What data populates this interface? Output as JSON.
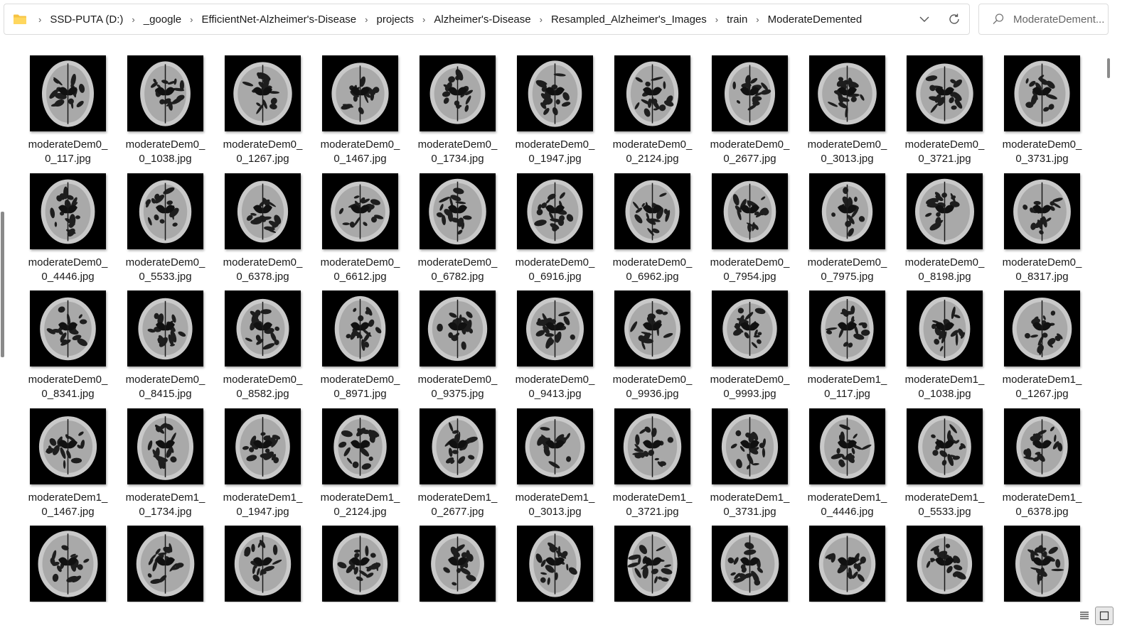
{
  "address": {
    "breadcrumbs": [
      "SSD-PUTA (D:)",
      "_google",
      "EfficientNet-Alzheimer's-Disease",
      "projects",
      "Alzheimer's-Disease",
      "Resampled_Alzheimer's_Images",
      "train",
      "ModerateDemented"
    ],
    "separator": "›"
  },
  "search": {
    "text": "ModerateDement..."
  },
  "files": [
    [
      "moderateDem0_",
      "0_117.jpg"
    ],
    [
      "moderateDem0_",
      "0_1038.jpg"
    ],
    [
      "moderateDem0_",
      "0_1267.jpg"
    ],
    [
      "moderateDem0_",
      "0_1467.jpg"
    ],
    [
      "moderateDem0_",
      "0_1734.jpg"
    ],
    [
      "moderateDem0_",
      "0_1947.jpg"
    ],
    [
      "moderateDem0_",
      "0_2124.jpg"
    ],
    [
      "moderateDem0_",
      "0_2677.jpg"
    ],
    [
      "moderateDem0_",
      "0_3013.jpg"
    ],
    [
      "moderateDem0_",
      "0_3721.jpg"
    ],
    [
      "moderateDem0_",
      "0_3731.jpg"
    ],
    [
      "moderateDem0_",
      "0_4446.jpg"
    ],
    [
      "moderateDem0_",
      "0_5533.jpg"
    ],
    [
      "moderateDem0_",
      "0_6378.jpg"
    ],
    [
      "moderateDem0_",
      "0_6612.jpg"
    ],
    [
      "moderateDem0_",
      "0_6782.jpg"
    ],
    [
      "moderateDem0_",
      "0_6916.jpg"
    ],
    [
      "moderateDem0_",
      "0_6962.jpg"
    ],
    [
      "moderateDem0_",
      "0_7954.jpg"
    ],
    [
      "moderateDem0_",
      "0_7975.jpg"
    ],
    [
      "moderateDem0_",
      "0_8198.jpg"
    ],
    [
      "moderateDem0_",
      "0_8317.jpg"
    ],
    [
      "moderateDem0_",
      "0_8341.jpg"
    ],
    [
      "moderateDem0_",
      "0_8415.jpg"
    ],
    [
      "moderateDem0_",
      "0_8582.jpg"
    ],
    [
      "moderateDem0_",
      "0_8971.jpg"
    ],
    [
      "moderateDem0_",
      "0_9375.jpg"
    ],
    [
      "moderateDem0_",
      "0_9413.jpg"
    ],
    [
      "moderateDem0_",
      "0_9936.jpg"
    ],
    [
      "moderateDem0_",
      "0_9993.jpg"
    ],
    [
      "moderateDem1_",
      "0_117.jpg"
    ],
    [
      "moderateDem1_",
      "0_1038.jpg"
    ],
    [
      "moderateDem1_",
      "0_1267.jpg"
    ],
    [
      "moderateDem1_",
      "0_1467.jpg"
    ],
    [
      "moderateDem1_",
      "0_1734.jpg"
    ],
    [
      "moderateDem1_",
      "0_1947.jpg"
    ],
    [
      "moderateDem1_",
      "0_2124.jpg"
    ],
    [
      "moderateDem1_",
      "0_2677.jpg"
    ],
    [
      "moderateDem1_",
      "0_3013.jpg"
    ],
    [
      "moderateDem1_",
      "0_3721.jpg"
    ],
    [
      "moderateDem1_",
      "0_3731.jpg"
    ],
    [
      "moderateDem1_",
      "0_4446.jpg"
    ],
    [
      "moderateDem1_",
      "0_5533.jpg"
    ],
    [
      "moderateDem1_",
      "0_6378.jpg"
    ],
    [
      "",
      ""
    ],
    [
      "",
      ""
    ],
    [
      "",
      ""
    ],
    [
      "",
      ""
    ],
    [
      "",
      ""
    ],
    [
      "",
      ""
    ],
    [
      "",
      ""
    ],
    [
      "",
      ""
    ],
    [
      "",
      ""
    ],
    [
      "",
      ""
    ],
    [
      "",
      ""
    ]
  ],
  "icons": {
    "folder": "folder-icon",
    "chevron": "chevron-down-icon",
    "refresh": "refresh-icon",
    "search": "search-icon",
    "details_view": "details-view-icon",
    "tiles_view": "large-icons-view-icon"
  },
  "colors": {
    "folder": "#f6c343",
    "thumbnail_bg": "#000000",
    "accent_border": "#dcdcdc"
  }
}
